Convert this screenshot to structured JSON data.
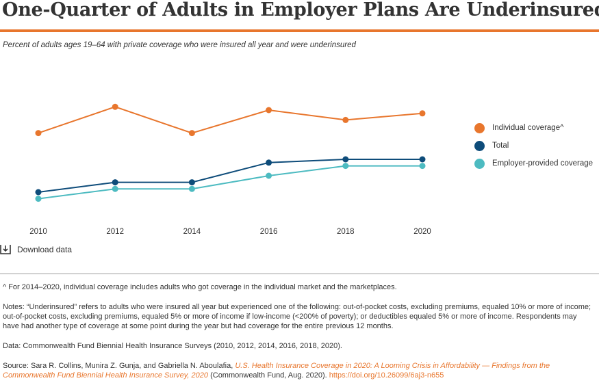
{
  "header": {
    "title": "One-Quarter of Adults in Employer Plans Are Underinsured",
    "subtitle": "Percent of adults ages 19–64 with private coverage who were insured all year and were underinsured"
  },
  "chart_data": {
    "type": "line",
    "title": "",
    "xlabel": "",
    "ylabel": "",
    "x": [
      "2010",
      "2012",
      "2014",
      "2016",
      "2018",
      "2020"
    ],
    "ylim": [
      0,
      50
    ],
    "grid": false,
    "legend_position": "right",
    "series": [
      {
        "name": "Individual coverage^",
        "color": "#e8762d",
        "values": [
          33,
          41,
          33,
          40,
          37,
          39
        ]
      },
      {
        "name": "Total",
        "color": "#0e4c7a",
        "values": [
          15,
          18,
          18,
          24,
          25,
          25
        ]
      },
      {
        "name": "Employer-provided coverage",
        "color": "#4dbbc1",
        "values": [
          13,
          16,
          16,
          20,
          23,
          23
        ]
      }
    ]
  },
  "download": {
    "label": "Download data",
    "icon": "download-icon"
  },
  "footer": {
    "caret_note": "^ For 2014–2020, individual coverage includes adults who got coverage in the individual market and the marketplaces.",
    "notes": "Notes: “Underinsured” refers to adults who were insured all year but experienced one of the following: out-of-pocket costs, excluding premiums, equaled 10% or more of income; out-of-pocket costs, excluding premiums, equaled 5% or more of income if low-income (<200% of poverty); or deductibles equaled 5% or more of income. Respondents may have had another type of coverage at some point during the year but had coverage for the entire previous 12 months.",
    "data": "Data: Commonwealth Fund Biennial Health Insurance Surveys (2010, 2012, 2014, 2016, 2018, 2020).",
    "source_prefix": "Source: Sara R. Collins, Munira Z. Gunja, and Gabriella N. Aboulafia, ",
    "source_title": "U.S. Health Insurance Coverage in 2020: A Looming Crisis in Affordability — Findings from the Commonwealth Fund Biennial Health Insurance Survey, 2020",
    "source_suffix": " (Commonwealth Fund, Aug. 2020). ",
    "source_doi": "https://doi.org/10.26099/6aj3-n655"
  }
}
